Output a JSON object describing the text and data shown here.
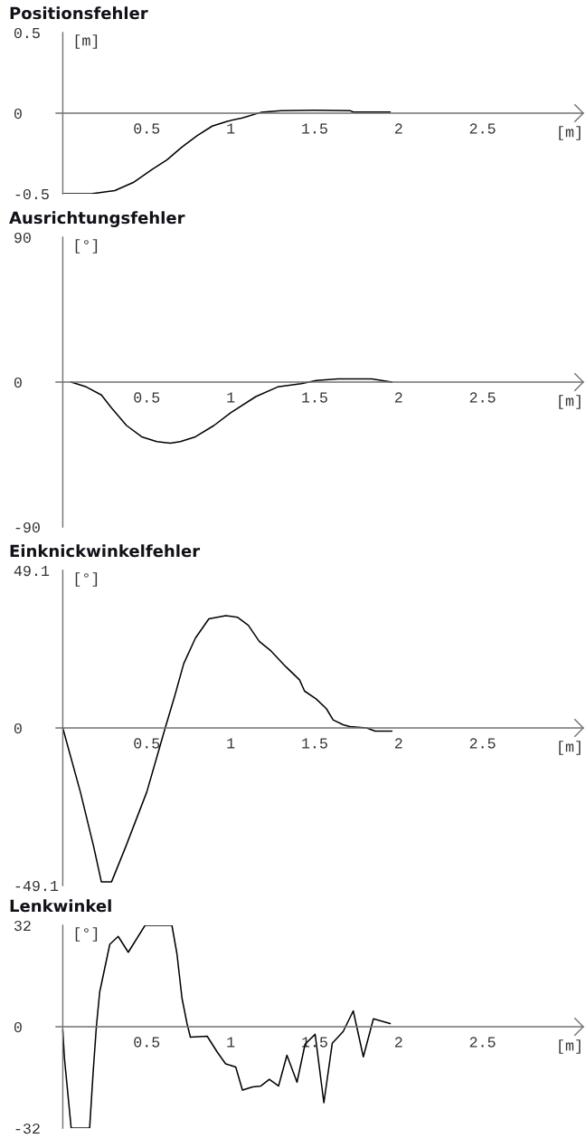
{
  "chart_data": [
    {
      "type": "line",
      "title": "Positionsfehler",
      "xlabel": "[m]",
      "ylabel": "[m]",
      "xlim": [
        -0.04,
        3.1
      ],
      "xticks": [
        0.5,
        1,
        1.5,
        2,
        2.5
      ],
      "ylim": [
        -0.5,
        0.5
      ],
      "yticks": [
        -0.5,
        0,
        0.5
      ],
      "series": [
        {
          "color": "#000000",
          "x": [
            0,
            0.17,
            0.31,
            0.42,
            0.53,
            0.62,
            0.71,
            0.8,
            0.89,
            0.98,
            1.07,
            1.18,
            1.3,
            1.5,
            1.71,
            1.73,
            1.95
          ],
          "values": [
            -0.5,
            -0.5,
            -0.48,
            -0.43,
            -0.35,
            -0.29,
            -0.21,
            -0.14,
            -0.08,
            -0.05,
            -0.03,
            0.005,
            0.016,
            0.018,
            0.016,
            0.007,
            0.007
          ]
        }
      ]
    },
    {
      "type": "line",
      "title": "Ausrichtungsfehler",
      "xlabel": "[m]",
      "ylabel": "[°]",
      "xlim": [
        -0.04,
        3.1
      ],
      "xticks": [
        0.5,
        1,
        1.5,
        2,
        2.5
      ],
      "ylim": [
        -90,
        90
      ],
      "yticks": [
        -90,
        0,
        90
      ],
      "series": [
        {
          "color": "#000000",
          "x": [
            0.05,
            0.14,
            0.23,
            0.29,
            0.38,
            0.47,
            0.56,
            0.64,
            0.7,
            0.79,
            0.9,
            1.0,
            1.15,
            1.28,
            1.42,
            1.51,
            1.64,
            1.84,
            1.96
          ],
          "values": [
            0,
            -3,
            -8,
            -16,
            -27,
            -34,
            -37,
            -38,
            -37,
            -34,
            -27,
            -19,
            -9,
            -3,
            -1,
            1,
            2,
            2,
            0
          ]
        }
      ]
    },
    {
      "type": "line",
      "title": "Einknickwinkelfehler",
      "xlabel": "[m]",
      "ylabel": "[°]",
      "xlim": [
        -0.04,
        3.1
      ],
      "xticks": [
        0.5,
        1,
        1.5,
        2,
        2.5
      ],
      "ylim": [
        -49.1,
        49.1
      ],
      "yticks": [
        -49.1,
        0,
        49.1
      ],
      "series": [
        {
          "color": "#000000",
          "x": [
            0,
            0.105,
            0.184,
            0.23,
            0.29,
            0.375,
            0.5,
            0.555,
            0.61,
            0.667,
            0.72,
            0.79,
            0.87,
            0.97,
            1.04,
            1.105,
            1.17,
            1.24,
            1.33,
            1.41,
            1.44,
            1.51,
            1.57,
            1.61,
            1.67,
            1.71,
            1.81,
            1.86,
            1.96
          ],
          "values": [
            0,
            -20,
            -37,
            -48,
            -48,
            -37,
            -20,
            -10,
            0,
            10,
            20,
            28,
            34,
            35,
            34.5,
            32,
            27,
            24,
            19,
            15,
            11.5,
            9,
            6,
            2.5,
            1,
            0.4,
            0,
            -1,
            -1
          ]
        }
      ]
    },
    {
      "type": "line",
      "title": "Lenkwinkel",
      "xlabel": "[m]",
      "ylabel": "[°]",
      "xlim": [
        -0.04,
        3.1
      ],
      "xticks": [
        0.5,
        1,
        1.5,
        2,
        2.5
      ],
      "ylim": [
        -32,
        32
      ],
      "yticks": [
        -32,
        0,
        32
      ],
      "series": [
        {
          "color": "#000000",
          "x": [
            0,
            0.01,
            0.05,
            0.16,
            0.18,
            0.2,
            0.22,
            0.28,
            0.33,
            0.39,
            0.49,
            0.65,
            0.68,
            0.71,
            0.74,
            0.76,
            0.86,
            0.92,
            0.97,
            1.03,
            1.07,
            1.13,
            1.18,
            1.23,
            1.285,
            1.335,
            1.395,
            1.443,
            1.503,
            1.555,
            1.605,
            1.67,
            1.73,
            1.79,
            1.85,
            1.95
          ],
          "values": [
            -1,
            -10,
            -32,
            -32,
            -15,
            0,
            11,
            26,
            28.5,
            23.5,
            32,
            32,
            23,
            9,
            1,
            -3.3,
            -3,
            -8,
            -11.7,
            -12.7,
            -20,
            -19,
            -18.7,
            -16.6,
            -18.7,
            -9,
            -17.5,
            -5.5,
            -2.4,
            -24,
            -5.2,
            -1.5,
            5,
            -9.5,
            2.5,
            1
          ]
        }
      ]
    }
  ]
}
